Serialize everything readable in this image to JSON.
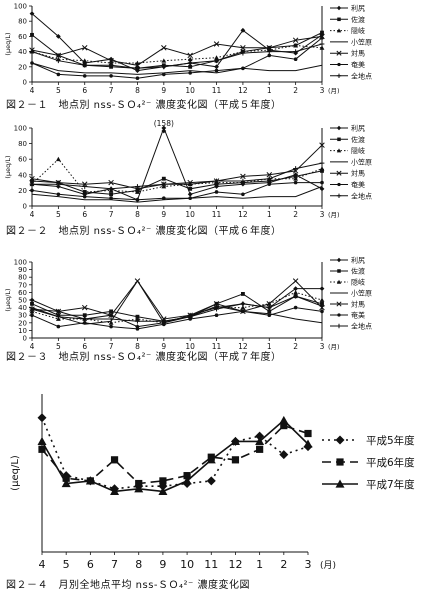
{
  "chart_data": [
    {
      "type": "line",
      "caption": "図２－１　地点別 nss-ＳＯ₄²⁻ 濃度変化図（平成５年度）",
      "ylabel": "(μeq/L)",
      "xlabel": "(月)",
      "ylim": [
        0,
        100
      ],
      "yticks": [
        0,
        20,
        40,
        60,
        80,
        100
      ],
      "categories": [
        "4",
        "5",
        "6",
        "7",
        "8",
        "9",
        "10",
        "11",
        "12",
        "1",
        "2",
        "3"
      ],
      "legend": "right",
      "series": [
        {
          "name": "利尻",
          "marker": "diamond",
          "dash": "solid",
          "values": [
            90,
            60,
            25,
            30,
            15,
            20,
            25,
            20,
            68,
            42,
            38,
            62
          ]
        },
        {
          "name": "佐渡",
          "marker": "square",
          "dash": "solid",
          "values": [
            62,
            35,
            22,
            20,
            18,
            22,
            20,
            28,
            40,
            45,
            48,
            65
          ]
        },
        {
          "name": "隠岐",
          "marker": "triangle",
          "dash": "dotted",
          "values": [
            40,
            30,
            28,
            25,
            25,
            28,
            30,
            32,
            40,
            42,
            48,
            45
          ]
        },
        {
          "name": "小笠原",
          "marker": "none",
          "dash": "solid",
          "values": [
            25,
            15,
            12,
            12,
            10,
            12,
            15,
            12,
            18,
            15,
            15,
            22
          ]
        },
        {
          "name": "対馬",
          "marker": "x",
          "dash": "solid",
          "values": [
            42,
            35,
            45,
            28,
            22,
            45,
            35,
            50,
            45,
            45,
            55,
            60
          ]
        },
        {
          "name": "奄美",
          "marker": "circle",
          "dash": "solid",
          "values": [
            25,
            10,
            8,
            8,
            5,
            10,
            12,
            15,
            18,
            35,
            30,
            58
          ]
        },
        {
          "name": "全地点",
          "marker": "plus",
          "dash": "solid",
          "values": [
            40,
            28,
            22,
            22,
            18,
            20,
            25,
            28,
            38,
            40,
            40,
            50
          ]
        }
      ]
    },
    {
      "type": "line",
      "caption": "図２－２　地点別 nss-ＳＯ₄²⁻ 濃度変化図（平成６年度）",
      "ylabel": "(μeq/L)",
      "xlabel": "(月)",
      "ylim": [
        0,
        100
      ],
      "yticks": [
        0,
        20,
        40,
        60,
        80,
        100
      ],
      "categories": [
        "4",
        "5",
        "6",
        "7",
        "8",
        "9",
        "10",
        "11",
        "12",
        "1",
        "2",
        "3"
      ],
      "legend": "right",
      "annotation": {
        "text": "(158)",
        "series": "利尻",
        "index": 5,
        "value": 158
      },
      "series": [
        {
          "name": "利尻",
          "marker": "diamond",
          "dash": "solid",
          "values": [
            28,
            25,
            15,
            22,
            8,
            158,
            15,
            25,
            28,
            30,
            40,
            22
          ]
        },
        {
          "name": "佐渡",
          "marker": "square",
          "dash": "solid",
          "values": [
            32,
            30,
            18,
            15,
            20,
            35,
            22,
            28,
            30,
            32,
            38,
            45
          ]
        },
        {
          "name": "隠岐",
          "marker": "triangle",
          "dash": "dotted",
          "values": [
            28,
            60,
            18,
            20,
            18,
            25,
            28,
            30,
            30,
            35,
            35,
            48
          ]
        },
        {
          "name": "小笠原",
          "marker": "none",
          "dash": "solid",
          "values": [
            15,
            12,
            8,
            8,
            5,
            8,
            10,
            12,
            10,
            12,
            12,
            25
          ]
        },
        {
          "name": "対馬",
          "marker": "x",
          "dash": "solid",
          "values": [
            35,
            30,
            28,
            30,
            22,
            28,
            30,
            32,
            38,
            40,
            45,
            78
          ]
        },
        {
          "name": "奄美",
          "marker": "circle",
          "dash": "solid",
          "values": [
            20,
            15,
            12,
            10,
            8,
            10,
            10,
            18,
            15,
            28,
            30,
            30
          ]
        },
        {
          "name": "全地点",
          "marker": "plus",
          "dash": "solid",
          "values": [
            28,
            28,
            25,
            22,
            25,
            28,
            28,
            32,
            32,
            35,
            48,
            55
          ]
        }
      ]
    },
    {
      "type": "line",
      "caption": "図２－３　地点別 nss-ＳＯ₄²⁻ 濃度変化図（平成７年度）",
      "ylabel": "(μeq/L)",
      "xlabel": "(月)",
      "ylim": [
        0,
        100
      ],
      "yticks": [
        0,
        10,
        20,
        30,
        40,
        50,
        60,
        70,
        80,
        90,
        100
      ],
      "categories": [
        "4",
        "5",
        "6",
        "7",
        "8",
        "9",
        "10",
        "11",
        "12",
        "1",
        "2",
        "3"
      ],
      "legend": "right",
      "series": [
        {
          "name": "利尻",
          "marker": "diamond",
          "dash": "solid",
          "values": [
            50,
            35,
            25,
            30,
            15,
            20,
            30,
            40,
            45,
            40,
            65,
            65
          ]
        },
        {
          "name": "佐渡",
          "marker": "square",
          "dash": "solid",
          "values": [
            45,
            30,
            30,
            35,
            28,
            22,
            28,
            45,
            58,
            35,
            55,
            45
          ]
        },
        {
          "name": "隠岐",
          "marker": "triangle",
          "dash": "dotted",
          "values": [
            35,
            25,
            25,
            20,
            25,
            20,
            30,
            40,
            40,
            45,
            60,
            50
          ]
        },
        {
          "name": "小笠原",
          "marker": "none",
          "dash": "solid",
          "values": [
            40,
            28,
            18,
            22,
            75,
            20,
            28,
            42,
            35,
            32,
            25,
            20
          ]
        },
        {
          "name": "対馬",
          "marker": "x",
          "dash": "solid",
          "values": [
            38,
            35,
            40,
            30,
            75,
            25,
            30,
            45,
            35,
            45,
            75,
            40
          ]
        },
        {
          "name": "奄美",
          "marker": "circle",
          "dash": "solid",
          "values": [
            30,
            15,
            20,
            15,
            12,
            18,
            25,
            30,
            35,
            30,
            40,
            35
          ]
        },
        {
          "name": "全地点",
          "marker": "plus",
          "dash": "solid",
          "values": [
            38,
            28,
            25,
            25,
            22,
            22,
            28,
            38,
            45,
            40,
            55,
            42
          ]
        }
      ]
    },
    {
      "type": "line",
      "caption": "図２－４　月別全地点平均 nss-ＳＯ₄²⁻ 濃度変化図",
      "ylabel": "(μeq/L)",
      "xlabel": "(月)",
      "ylim": [
        0,
        60
      ],
      "yticks": [],
      "categories": [
        "4",
        "5",
        "6",
        "7",
        "8",
        "9",
        "10",
        "11",
        "12",
        "1",
        "2",
        "3"
      ],
      "legend": "right",
      "series": [
        {
          "name": "平成5年度",
          "marker": "diamond",
          "dash": "dotted",
          "values": [
            51,
            29,
            27,
            24,
            25,
            25,
            26,
            27,
            42,
            44,
            37,
            40
          ]
        },
        {
          "name": "平成6年度",
          "marker": "square",
          "dash": "dashed",
          "values": [
            39,
            28,
            27,
            35,
            26,
            27,
            29,
            36,
            35,
            39,
            48,
            45
          ]
        },
        {
          "name": "平成7年度",
          "marker": "triangle",
          "dash": "solid",
          "values": [
            42,
            26,
            27,
            23,
            24,
            23,
            27,
            35,
            42,
            42,
            50,
            41
          ]
        }
      ]
    }
  ]
}
